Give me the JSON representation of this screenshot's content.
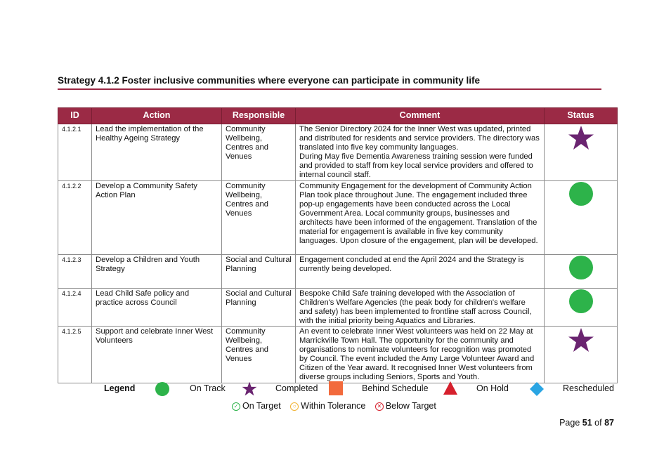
{
  "heading": "Strategy 4.1.2 Foster inclusive communities where everyone can participate in community life",
  "table": {
    "headers": [
      "ID",
      "Action",
      "Responsible",
      "Comment",
      "Status"
    ],
    "rows": [
      {
        "id": "4.1.2.1",
        "action": "Lead the implementation of the Healthy Ageing Strategy",
        "responsible": "Community Wellbeing, Centres and Venues",
        "comment": "The Senior Directory 2024 for the Inner West was updated, printed and distributed for residents and service providers. The directory was translated into five key community languages.\nDuring May five Dementia Awareness training session were funded and provided to staff from key local service providers and offered to internal council staff.",
        "status": "Completed"
      },
      {
        "id": "4.1.2.2",
        "action": "Develop a Community Safety Action Plan",
        "responsible": "Community Wellbeing, Centres and Venues",
        "comment": "Community Engagement for the development of Community Action Plan took place throughout June. The engagement included three pop-up engagements have been conducted across the Local Government Area. Local community groups, businesses and architects have been informed of the engagement. Translation of the material for engagement is available in five key community languages. Upon closure of the engagement, plan will be developed.",
        "status": "On Track"
      },
      {
        "id": "4.1.2.3",
        "action": "Develop a Children and Youth Strategy",
        "responsible": "Social and Cultural Planning",
        "comment": "Engagement concluded at end the April 2024 and the Strategy is currently being developed.",
        "status": "On Track"
      },
      {
        "id": "4.1.2.4",
        "action": "Lead Child Safe policy and practice across Council",
        "responsible": "Social and Cultural Planning",
        "comment": "Bespoke Child Safe training developed with the Association of Children's Welfare Agencies (the peak body for children's welfare and safety) has been implemented to frontline staff across Council, with the initial priority being Aquatics and Libraries.",
        "status": "On Track"
      },
      {
        "id": "4.1.2.5",
        "action": "Support and celebrate Inner West Volunteers",
        "responsible": "Community Wellbeing, Centres and Venues",
        "comment": "An event to celebrate Inner West volunteers was held on 22 May at Marrickville Town Hall. The opportunity for the community and organisations to nominate volunteers for recognition was promoted by Council. The event included the Amy Large Volunteer Award and Citizen of the Year award. It recognised Inner West volunteers from diverse groups including Seniors, Sports and Youth.",
        "status": "Completed"
      }
    ]
  },
  "legend": {
    "title": "Legend",
    "items": [
      {
        "label": "On Track",
        "icon": "green-circle-icon",
        "color": "#2db34a"
      },
      {
        "label": "Completed",
        "icon": "purple-star-icon",
        "color": "#6a2470"
      },
      {
        "label": "Behind Schedule",
        "icon": "orange-square-icon",
        "color": "#f26a3c"
      },
      {
        "label": "On Hold",
        "icon": "red-triangle-icon",
        "color": "#d6202d"
      },
      {
        "label": "Rescheduled",
        "icon": "blue-diamond-icon",
        "color": "#2aa5e3"
      }
    ],
    "targets": [
      {
        "label": "On Target",
        "glyph": "✓",
        "color": "#2db34a"
      },
      {
        "label": "Within Tolerance",
        "glyph": "○",
        "color": "#f2b233"
      },
      {
        "label": "Below Target",
        "glyph": "✕",
        "color": "#d6202d"
      }
    ]
  },
  "page": {
    "prefix": "Page",
    "current": "51",
    "of": "of",
    "total": "87"
  },
  "colors": {
    "header_bg": "#9b2a45",
    "rule": "#9b2743"
  }
}
